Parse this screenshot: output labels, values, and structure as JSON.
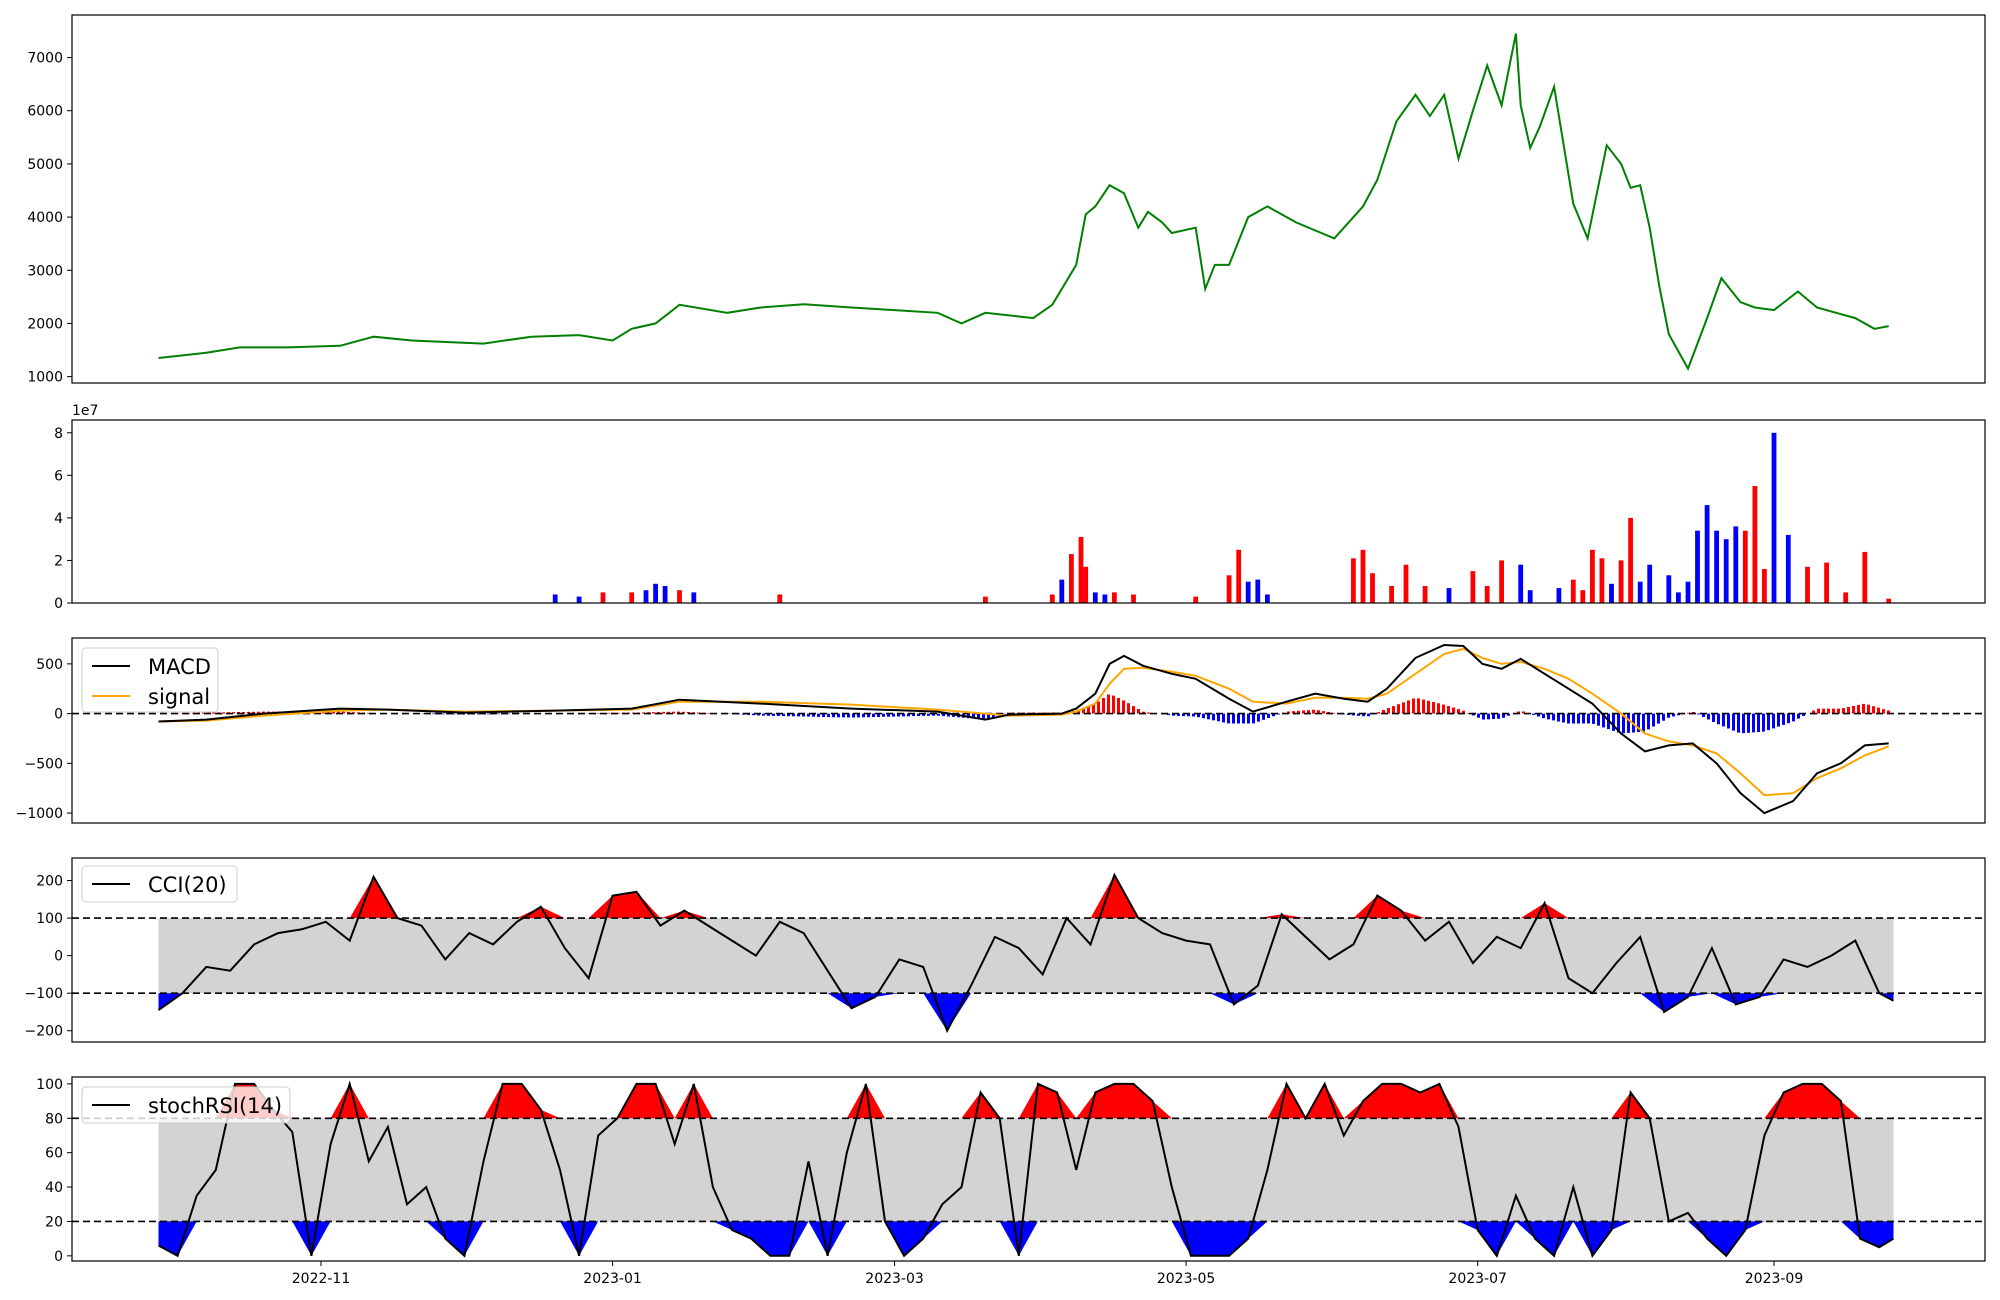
{
  "chart_data": [
    {
      "type": "line",
      "panel": "price",
      "color": "#008000",
      "ylim": [
        880,
        7800
      ],
      "yticks": [
        1000,
        2000,
        3000,
        4000,
        5000,
        6000,
        7000
      ],
      "ytick_labels": [
        "1000",
        "2000",
        "3000",
        "4000",
        "5000",
        "6000",
        "7000"
      ],
      "x": [
        "2022-09-28",
        "2022-10-08",
        "2022-10-15",
        "2022-10-25",
        "2022-11-05",
        "2022-11-12",
        "2022-11-20",
        "2022-12-05",
        "2022-12-15",
        "2022-12-25",
        "2023-01-01",
        "2023-01-05",
        "2023-01-10",
        "2023-01-15",
        "2023-01-25",
        "2023-02-01",
        "2023-02-10",
        "2023-02-20",
        "2023-03-01",
        "2023-03-10",
        "2023-03-15",
        "2023-03-20",
        "2023-03-30",
        "2023-04-03",
        "2023-04-08",
        "2023-04-10",
        "2023-04-12",
        "2023-04-15",
        "2023-04-18",
        "2023-04-21",
        "2023-04-23",
        "2023-04-26",
        "2023-04-28",
        "2023-05-03",
        "2023-05-05",
        "2023-05-07",
        "2023-05-10",
        "2023-05-14",
        "2023-05-18",
        "2023-05-24",
        "2023-06-01",
        "2023-06-07",
        "2023-06-10",
        "2023-06-14",
        "2023-06-18",
        "2023-06-21",
        "2023-06-24",
        "2023-06-27",
        "2023-06-30",
        "2023-07-03",
        "2023-07-06",
        "2023-07-09",
        "2023-07-10",
        "2023-07-12",
        "2023-07-14",
        "2023-07-17",
        "2023-07-21",
        "2023-07-24",
        "2023-07-28",
        "2023-07-31",
        "2023-08-02",
        "2023-08-04",
        "2023-08-06",
        "2023-08-08",
        "2023-08-10",
        "2023-08-14",
        "2023-08-18",
        "2023-08-21",
        "2023-08-25",
        "2023-08-28",
        "2023-09-01",
        "2023-09-06",
        "2023-09-10",
        "2023-09-14",
        "2023-09-18",
        "2023-09-22",
        "2023-09-25"
      ],
      "values": [
        1350,
        1450,
        1550,
        1550,
        1580,
        1750,
        1680,
        1620,
        1750,
        1780,
        1680,
        1900,
        2000,
        2350,
        2200,
        2300,
        2360,
        2300,
        2250,
        2200,
        2000,
        2200,
        2100,
        2350,
        3100,
        4050,
        4200,
        4600,
        4450,
        3800,
        4100,
        3900,
        3700,
        3800,
        2650,
        3100,
        3100,
        4000,
        4200,
        3900,
        3600,
        4200,
        4700,
        5800,
        6300,
        5900,
        6300,
        5100,
        6000,
        6850,
        6100,
        7450,
        6100,
        5300,
        5700,
        6450,
        4250,
        3600,
        5350,
        5000,
        4550,
        4600,
        3800,
        2700,
        1800,
        1150,
        2100,
        2850,
        2400,
        2300,
        2250,
        2600,
        2300,
        2200,
        2100,
        1900,
        1950
      ]
    },
    {
      "type": "bar",
      "panel": "volume",
      "scale_label": "1e7",
      "ylim": [
        0,
        8.6
      ],
      "yticks": [
        0,
        2,
        4,
        6,
        8
      ],
      "ytick_labels": [
        "0",
        "2",
        "4",
        "6",
        "8"
      ],
      "colors": {
        "up": "#ff0000",
        "down": "#0000ff"
      },
      "x": [
        "2022-12-20",
        "2022-12-25",
        "2022-12-30",
        "2023-01-05",
        "2023-01-08",
        "2023-01-10",
        "2023-01-12",
        "2023-01-15",
        "2023-01-18",
        "2023-02-05",
        "2023-03-20",
        "2023-04-03",
        "2023-04-05",
        "2023-04-07",
        "2023-04-09",
        "2023-04-10",
        "2023-04-12",
        "2023-04-14",
        "2023-04-16",
        "2023-04-20",
        "2023-05-03",
        "2023-05-10",
        "2023-05-12",
        "2023-05-14",
        "2023-05-16",
        "2023-05-18",
        "2023-06-05",
        "2023-06-07",
        "2023-06-09",
        "2023-06-13",
        "2023-06-16",
        "2023-06-20",
        "2023-06-25",
        "2023-06-30",
        "2023-07-03",
        "2023-07-06",
        "2023-07-10",
        "2023-07-12",
        "2023-07-18",
        "2023-07-21",
        "2023-07-23",
        "2023-07-25",
        "2023-07-27",
        "2023-07-29",
        "2023-07-31",
        "2023-08-02",
        "2023-08-04",
        "2023-08-06",
        "2023-08-10",
        "2023-08-12",
        "2023-08-14",
        "2023-08-16",
        "2023-08-18",
        "2023-08-20",
        "2023-08-22",
        "2023-08-24",
        "2023-08-26",
        "2023-08-28",
        "2023-08-30",
        "2023-09-01",
        "2023-09-04",
        "2023-09-08",
        "2023-09-12",
        "2023-09-16",
        "2023-09-20",
        "2023-09-25"
      ],
      "values": [
        0.4,
        0.3,
        0.5,
        0.5,
        0.6,
        0.9,
        0.8,
        0.6,
        0.5,
        0.4,
        0.3,
        0.4,
        1.1,
        2.3,
        3.1,
        1.7,
        0.5,
        0.4,
        0.5,
        0.4,
        0.3,
        1.3,
        2.5,
        1.0,
        1.1,
        0.4,
        2.1,
        2.5,
        1.4,
        0.8,
        1.8,
        0.8,
        0.7,
        1.5,
        0.8,
        2.0,
        1.8,
        0.6,
        0.7,
        1.1,
        0.6,
        2.5,
        2.1,
        0.9,
        2.0,
        4.0,
        1.0,
        1.8,
        1.3,
        0.5,
        1.0,
        3.4,
        4.6,
        3.4,
        3.0,
        3.6,
        3.4,
        5.5,
        1.6,
        8.0,
        3.2,
        1.7,
        1.9,
        0.5,
        2.4,
        0.2
      ],
      "directions": [
        "down",
        "down",
        "up",
        "up",
        "down",
        "down",
        "down",
        "up",
        "down",
        "up",
        "up",
        "up",
        "down",
        "up",
        "up",
        "up",
        "down",
        "down",
        "up",
        "up",
        "up",
        "up",
        "up",
        "down",
        "down",
        "down",
        "up",
        "up",
        "up",
        "up",
        "up",
        "up",
        "down",
        "up",
        "up",
        "up",
        "down",
        "down",
        "down",
        "up",
        "up",
        "up",
        "up",
        "down",
        "up",
        "up",
        "down",
        "down",
        "down",
        "down",
        "down",
        "down",
        "down",
        "down",
        "down",
        "down",
        "up",
        "up",
        "up",
        "down",
        "down",
        "up",
        "up",
        "up",
        "up",
        "up"
      ]
    },
    {
      "type": "line",
      "panel": "macd",
      "ylim": [
        -1100,
        760
      ],
      "yticks": [
        -1000,
        -500,
        0,
        500
      ],
      "ytick_labels": [
        "−1000",
        "−500",
        "0",
        "500"
      ],
      "legend": [
        "MACD",
        "signal"
      ],
      "colors": {
        "macd": "#000000",
        "signal": "#ffa500",
        "hist_pos": "#ff0000",
        "hist_neg": "#0000ff"
      },
      "x": [
        "2022-09-28",
        "2022-10-08",
        "2022-10-20",
        "2022-11-05",
        "2022-11-15",
        "2022-12-01",
        "2022-12-20",
        "2023-01-05",
        "2023-01-15",
        "2023-02-01",
        "2023-02-20",
        "2023-03-10",
        "2023-03-20",
        "2023-03-25",
        "2023-04-05",
        "2023-04-08",
        "2023-04-12",
        "2023-04-15",
        "2023-04-18",
        "2023-04-22",
        "2023-04-28",
        "2023-05-03",
        "2023-05-10",
        "2023-05-15",
        "2023-05-22",
        "2023-05-28",
        "2023-06-03",
        "2023-06-08",
        "2023-06-12",
        "2023-06-18",
        "2023-06-24",
        "2023-06-28",
        "2023-07-02",
        "2023-07-06",
        "2023-07-10",
        "2023-07-15",
        "2023-07-20",
        "2023-07-25",
        "2023-07-31",
        "2023-08-05",
        "2023-08-10",
        "2023-08-15",
        "2023-08-20",
        "2023-08-25",
        "2023-08-30",
        "2023-09-05",
        "2023-09-10",
        "2023-09-15",
        "2023-09-20",
        "2023-09-25"
      ],
      "macd": [
        -80,
        -60,
        0,
        50,
        40,
        10,
        30,
        50,
        140,
        100,
        50,
        20,
        -60,
        -10,
        0,
        50,
        200,
        500,
        580,
        480,
        400,
        350,
        150,
        20,
        120,
        200,
        150,
        120,
        250,
        560,
        690,
        680,
        500,
        450,
        550,
        400,
        250,
        100,
        -200,
        -380,
        -320,
        -300,
        -500,
        -800,
        -1000,
        -880,
        -600,
        -500,
        -320,
        -300
      ],
      "signal": [
        -80,
        -70,
        -20,
        30,
        40,
        20,
        30,
        40,
        120,
        120,
        90,
        40,
        0,
        -20,
        -10,
        20,
        100,
        300,
        450,
        460,
        420,
        380,
        250,
        120,
        100,
        160,
        160,
        150,
        200,
        400,
        600,
        650,
        560,
        500,
        520,
        450,
        350,
        200,
        0,
        -200,
        -280,
        -320,
        -400,
        -600,
        -820,
        -800,
        -650,
        -550,
        -420,
        -330
      ]
    },
    {
      "type": "line",
      "panel": "cci",
      "ylim": [
        -230,
        260
      ],
      "yticks": [
        -200,
        -100,
        0,
        100,
        200
      ],
      "ytick_labels": [
        "−200",
        "−100",
        "0",
        "100",
        "200"
      ],
      "thresholds": [
        -100,
        100
      ],
      "legend": [
        "CCI(20)"
      ],
      "colors": {
        "line": "#000000",
        "above": "#ff0000",
        "below": "#0000ff",
        "band": "#d3d3d3"
      },
      "x": [
        "2022-09-28",
        "2022-10-03",
        "2022-10-08",
        "2022-10-13",
        "2022-10-18",
        "2022-10-23",
        "2022-10-28",
        "2022-11-02",
        "2022-11-07",
        "2022-11-12",
        "2022-11-17",
        "2022-11-22",
        "2022-11-27",
        "2022-12-02",
        "2022-12-07",
        "2022-12-12",
        "2022-12-17",
        "2022-12-22",
        "2022-12-27",
        "2023-01-01",
        "2023-01-06",
        "2023-01-11",
        "2023-01-16",
        "2023-01-21",
        "2023-01-26",
        "2023-01-31",
        "2023-02-05",
        "2023-02-10",
        "2023-02-15",
        "2023-02-20",
        "2023-02-25",
        "2023-03-02",
        "2023-03-07",
        "2023-03-12",
        "2023-03-17",
        "2023-03-22",
        "2023-03-27",
        "2023-04-01",
        "2023-04-06",
        "2023-04-11",
        "2023-04-16",
        "2023-04-21",
        "2023-04-26",
        "2023-05-01",
        "2023-05-06",
        "2023-05-11",
        "2023-05-16",
        "2023-05-21",
        "2023-05-26",
        "2023-05-31",
        "2023-06-05",
        "2023-06-10",
        "2023-06-15",
        "2023-06-20",
        "2023-06-25",
        "2023-06-30",
        "2023-07-05",
        "2023-07-10",
        "2023-07-15",
        "2023-07-20",
        "2023-07-25",
        "2023-07-30",
        "2023-08-04",
        "2023-08-09",
        "2023-08-14",
        "2023-08-19",
        "2023-08-24",
        "2023-08-29",
        "2023-09-03",
        "2023-09-08",
        "2023-09-13",
        "2023-09-18",
        "2023-09-23",
        "2023-09-26"
      ],
      "values": [
        -145,
        -100,
        -30,
        -40,
        30,
        60,
        70,
        90,
        40,
        210,
        100,
        80,
        -10,
        60,
        30,
        90,
        130,
        20,
        -60,
        160,
        170,
        80,
        120,
        80,
        40,
        0,
        90,
        60,
        -40,
        -140,
        -110,
        -10,
        -30,
        -200,
        -80,
        50,
        20,
        -50,
        100,
        30,
        215,
        100,
        60,
        40,
        30,
        -130,
        -80,
        110,
        50,
        -10,
        30,
        160,
        120,
        40,
        90,
        -20,
        50,
        20,
        140,
        -60,
        -100,
        -20,
        50,
        -150,
        -110,
        20,
        -130,
        -110,
        -10,
        -30,
        0,
        40,
        -100,
        -120
      ]
    },
    {
      "type": "line",
      "panel": "stochrsi",
      "ylim": [
        -3,
        104
      ],
      "yticks": [
        0,
        20,
        40,
        60,
        80,
        100
      ],
      "ytick_labels": [
        "0",
        "20",
        "40",
        "60",
        "80",
        "100"
      ],
      "thresholds": [
        20,
        80
      ],
      "legend": [
        "stochRSI(14)"
      ],
      "colors": {
        "line": "#000000",
        "above": "#ff0000",
        "below": "#0000ff",
        "band": "#d3d3d3"
      },
      "x": [
        "2022-09-28",
        "2022-10-02",
        "2022-10-06",
        "2022-10-10",
        "2022-10-14",
        "2022-10-18",
        "2022-10-22",
        "2022-10-26",
        "2022-10-30",
        "2022-11-03",
        "2022-11-07",
        "2022-11-11",
        "2022-11-15",
        "2022-11-19",
        "2022-11-23",
        "2022-11-27",
        "2022-12-01",
        "2022-12-05",
        "2022-12-09",
        "2022-12-13",
        "2022-12-17",
        "2022-12-21",
        "2022-12-25",
        "2022-12-29",
        "2023-01-02",
        "2023-01-06",
        "2023-01-10",
        "2023-01-14",
        "2023-01-18",
        "2023-01-22",
        "2023-01-26",
        "2023-01-30",
        "2023-02-03",
        "2023-02-07",
        "2023-02-11",
        "2023-02-15",
        "2023-02-19",
        "2023-02-23",
        "2023-02-27",
        "2023-03-03",
        "2023-03-07",
        "2023-03-11",
        "2023-03-15",
        "2023-03-19",
        "2023-03-23",
        "2023-03-27",
        "2023-03-31",
        "2023-04-04",
        "2023-04-08",
        "2023-04-12",
        "2023-04-16",
        "2023-04-20",
        "2023-04-24",
        "2023-04-28",
        "2023-05-02",
        "2023-05-06",
        "2023-05-10",
        "2023-05-14",
        "2023-05-18",
        "2023-05-22",
        "2023-05-26",
        "2023-05-30",
        "2023-06-03",
        "2023-06-07",
        "2023-06-11",
        "2023-06-15",
        "2023-06-19",
        "2023-06-23",
        "2023-06-27",
        "2023-07-01",
        "2023-07-05",
        "2023-07-09",
        "2023-07-13",
        "2023-07-17",
        "2023-07-21",
        "2023-07-25",
        "2023-07-29",
        "2023-08-02",
        "2023-08-06",
        "2023-08-10",
        "2023-08-14",
        "2023-08-18",
        "2023-08-22",
        "2023-08-26",
        "2023-08-30",
        "2023-09-03",
        "2023-09-07",
        "2023-09-11",
        "2023-09-15",
        "2023-09-19",
        "2023-09-23",
        "2023-09-26"
      ],
      "values": [
        6,
        0,
        35,
        50,
        100,
        100,
        85,
        72,
        0,
        65,
        100,
        55,
        75,
        30,
        40,
        10,
        0,
        55,
        100,
        100,
        85,
        50,
        0,
        70,
        80,
        100,
        100,
        65,
        100,
        40,
        15,
        10,
        0,
        0,
        55,
        0,
        60,
        100,
        20,
        0,
        10,
        30,
        40,
        95,
        80,
        0,
        100,
        95,
        50,
        95,
        100,
        100,
        90,
        40,
        0,
        0,
        0,
        10,
        50,
        100,
        80,
        100,
        70,
        90,
        100,
        100,
        95,
        100,
        75,
        15,
        0,
        35,
        10,
        0,
        40,
        0,
        15,
        95,
        80,
        20,
        25,
        10,
        0,
        15,
        70,
        95,
        100,
        100,
        90,
        10,
        5,
        10
      ]
    }
  ],
  "x_axis": {
    "ticks": [
      "2022-11-01",
      "2023-01-01",
      "2023-03-01",
      "2023-05-01",
      "2023-07-01",
      "2023-09-01"
    ],
    "tick_labels": [
      "2022-11",
      "2023-01",
      "2023-03",
      "2023-05",
      "2023-07",
      "2023-09"
    ]
  }
}
